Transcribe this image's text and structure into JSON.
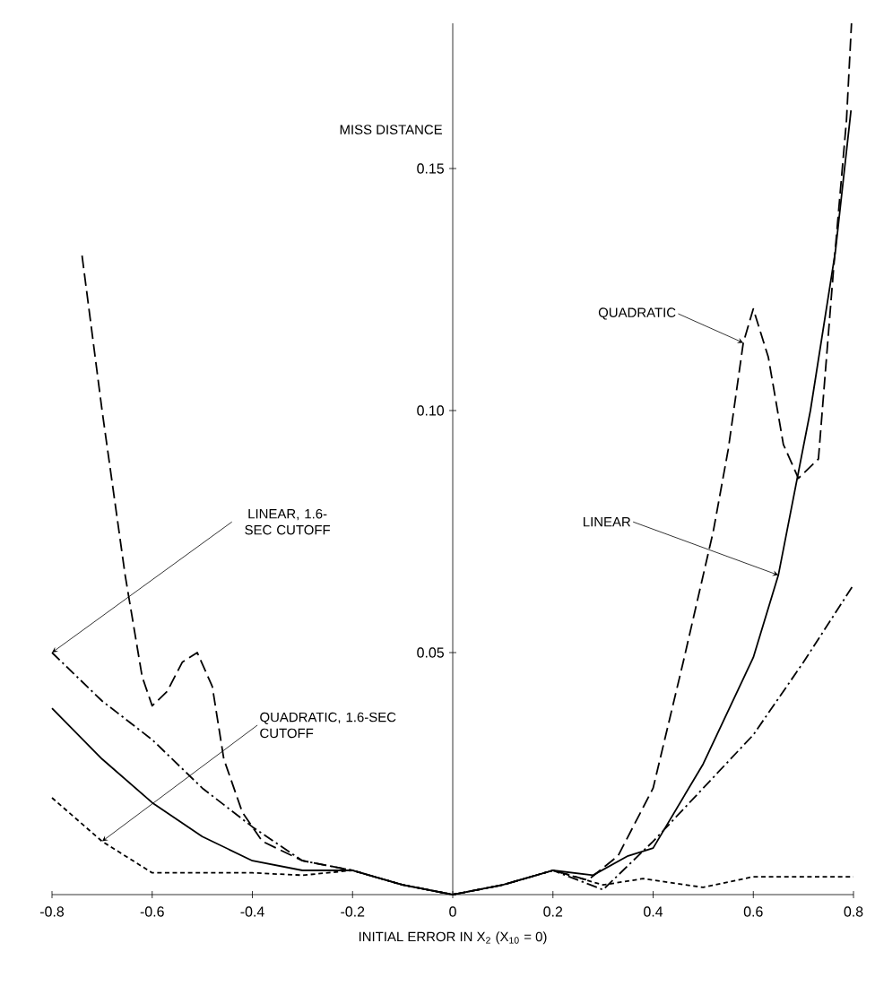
{
  "chart_data": {
    "type": "line",
    "xlabel": "INITIAL ERROR IN X$_{2}$ (X$_{10}$ = 0)",
    "ylabel": "MISS DISTANCE",
    "xlim": [
      -0.8,
      0.8
    ],
    "ylim": [
      0,
      0.18
    ],
    "xticks": [
      -0.8,
      -0.6,
      -0.4,
      -0.2,
      0,
      0.2,
      0.4,
      0.6,
      0.8
    ],
    "yticks": [
      0.05,
      {
        "value": 0.1,
        "label": "0.10"
      },
      0.15
    ],
    "marker": "none",
    "series": [
      {
        "name": "QUADRATIC",
        "color": "#000000",
        "line_style": "dashed",
        "x": [
          -0.74,
          -0.7,
          -0.654,
          -0.62,
          -0.6,
          -0.57,
          -0.54,
          -0.51,
          -0.48,
          -0.457,
          -0.42,
          -0.38,
          -0.3,
          -0.2,
          -0.1,
          0,
          0.1,
          0.2,
          0.27,
          0.33,
          0.4,
          0.46,
          0.52,
          0.55,
          0.58,
          0.6,
          0.63,
          0.66,
          0.69,
          0.73,
          0.76,
          0.786,
          0.796
        ],
        "values": [
          0.132,
          0.1,
          0.066,
          0.045,
          0.039,
          0.042,
          0.048,
          0.05,
          0.043,
          0.028,
          0.017,
          0.011,
          0.007,
          0.005,
          0.002,
          0,
          0.002,
          0.005,
          0.003,
          0.008,
          0.022,
          0.048,
          0.075,
          0.092,
          0.114,
          0.121,
          0.111,
          0.093,
          0.086,
          0.09,
          0.129,
          0.16,
          0.18
        ]
      },
      {
        "name": "LINEAR",
        "color": "#000000",
        "line_style": "solid",
        "x": [
          -0.8,
          -0.7,
          -0.6,
          -0.5,
          -0.4,
          -0.3,
          -0.2,
          -0.1,
          0,
          0.1,
          0.2,
          0.28,
          0.35,
          0.4,
          0.5,
          0.6,
          0.65,
          0.714,
          0.764,
          0.795
        ],
        "values": [
          0.0385,
          0.028,
          0.019,
          0.012,
          0.007,
          0.005,
          0.005,
          0.002,
          0,
          0.002,
          0.005,
          0.004,
          0.008,
          0.0096,
          0.027,
          0.049,
          0.066,
          0.1,
          0.133,
          0.162
        ]
      },
      {
        "name": "LINEAR, 1.6-SEC CUTOFF",
        "color": "#000000",
        "line_style": "dashdot",
        "x": [
          -0.8,
          -0.7,
          -0.6,
          -0.5,
          -0.4,
          -0.3,
          -0.2,
          -0.1,
          0,
          0.1,
          0.2,
          0.3,
          0.4,
          0.5,
          0.6,
          0.7,
          0.8
        ],
        "values": [
          0.05,
          0.04,
          0.032,
          0.022,
          0.014,
          0.007,
          0.005,
          0.002,
          0,
          0.002,
          0.005,
          0.001,
          0.011,
          0.022,
          0.033,
          0.048,
          0.064
        ]
      },
      {
        "name": "QUADRATIC, 1.6-SEC CUTOFF",
        "color": "#000000",
        "line_style": "densely dashed",
        "x": [
          -0.8,
          -0.7,
          -0.6,
          -0.5,
          -0.4,
          -0.3,
          -0.2,
          -0.1,
          0,
          0.1,
          0.2,
          0.3,
          0.38,
          0.5,
          0.6,
          0.7,
          0.8
        ],
        "values": [
          0.02,
          0.011,
          0.0045,
          0.0045,
          0.0045,
          0.004,
          0.005,
          0.002,
          0,
          0.002,
          0.005,
          0.002,
          0.0033,
          0.0015,
          0.0037,
          0.0037,
          0.0037
        ]
      }
    ]
  }
}
